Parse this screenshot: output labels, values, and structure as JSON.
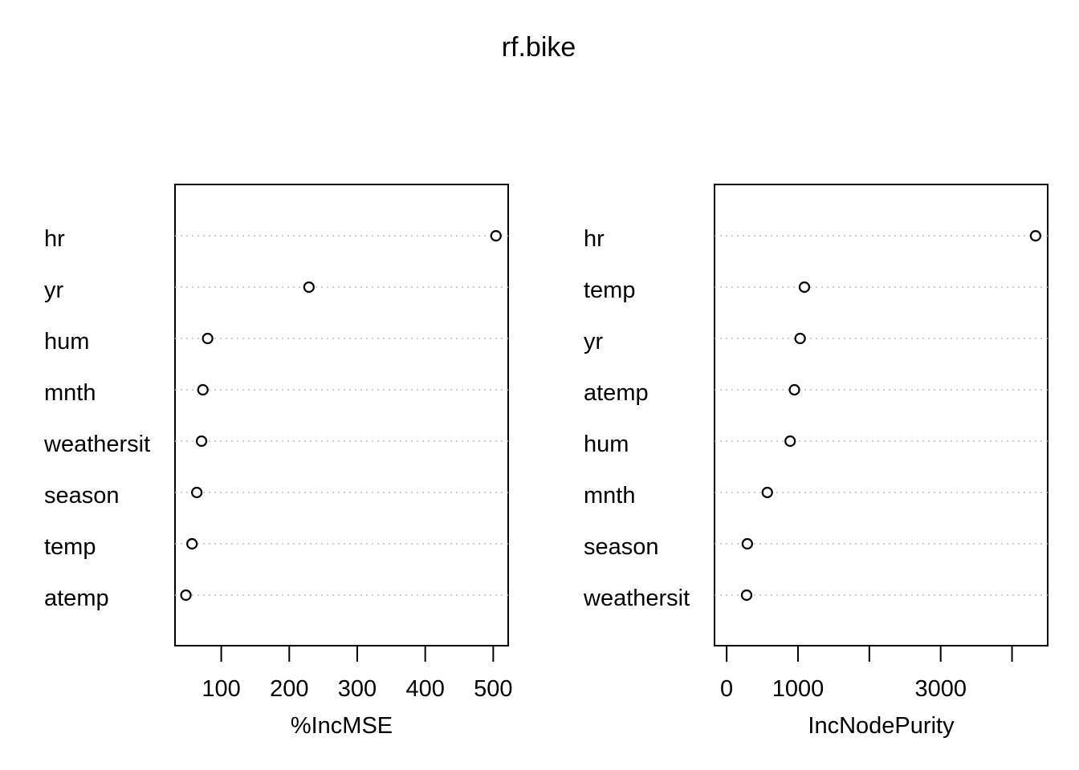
{
  "title": "rf.bike",
  "chart_data": [
    {
      "type": "scatter",
      "xlabel": "%IncMSE",
      "xticks": [
        100,
        200,
        300,
        400,
        500
      ],
      "xlim": [
        32,
        522
      ],
      "grid": "dotted horizontal lines per variable",
      "labels": [
        "hr",
        "yr",
        "hum",
        "mnth",
        "weathersit",
        "season",
        "temp",
        "atemp"
      ],
      "values": [
        504,
        229,
        80,
        73,
        71,
        64,
        57,
        48
      ]
    },
    {
      "type": "scatter",
      "xlabel": "IncNodePurity",
      "xticks": [
        0,
        1000,
        2000,
        3000,
        4000
      ],
      "xticklabels": [
        "0",
        "1000",
        "",
        "3000",
        ""
      ],
      "xlim": [
        -170,
        4500
      ],
      "grid": "dotted horizontal lines per variable",
      "labels": [
        "hr",
        "temp",
        "yr",
        "atemp",
        "hum",
        "mnth",
        "season",
        "weathersit"
      ],
      "values": [
        4330,
        1090,
        1030,
        950,
        890,
        570,
        290,
        280
      ]
    }
  ]
}
